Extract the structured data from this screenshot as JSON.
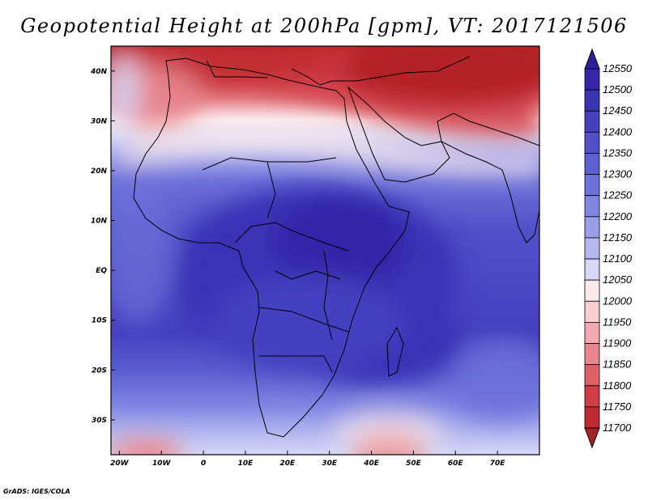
{
  "title": "Geopotential Height at 200hPa [gpm], VT: 2017121506",
  "credit": "GrADS: IGES/COLA",
  "map": {
    "lon_range": [
      -22,
      80
    ],
    "lat_range": [
      -37,
      45
    ],
    "lon_labels": [
      "20W",
      "10W",
      "0",
      "10E",
      "20E",
      "30E",
      "40E",
      "50E",
      "60E",
      "70E"
    ],
    "lon_values": [
      -20,
      -10,
      0,
      10,
      20,
      30,
      40,
      50,
      60,
      70
    ],
    "lat_labels": [
      "40N",
      "30N",
      "20N",
      "10N",
      "EQ",
      "10S",
      "20S",
      "30S"
    ],
    "lat_values": [
      40,
      30,
      20,
      10,
      0,
      -10,
      -20,
      -30
    ]
  },
  "colorbar": {
    "levels": [
      "12550",
      "12500",
      "12450",
      "12400",
      "12350",
      "12300",
      "12250",
      "12200",
      "12150",
      "12100",
      "12050",
      "12000",
      "11950",
      "11900",
      "11850",
      "11800",
      "11750",
      "11700"
    ],
    "colors": [
      "#2a1f9c",
      "#3326a8",
      "#3b33b5",
      "#4540bf",
      "#5150c8",
      "#5d60d0",
      "#6d72da",
      "#8085e2",
      "#9a9eea",
      "#b6b9f0",
      "#d6d8f6",
      "#fbeaec",
      "#f7cfd3",
      "#f0aab0",
      "#e8868e",
      "#de6168",
      "#d03d44",
      "#bd2a30",
      "#a81f25"
    ]
  },
  "chart_data": {
    "type": "heatmap",
    "title": "Geopotential Height at 200hPa [gpm], VT: 2017121506",
    "variable": "Geopotential Height",
    "level": "200hPa",
    "units": "gpm",
    "valid_time": "2017121506",
    "x_ticks": [
      "20W",
      "10W",
      "0",
      "10E",
      "20E",
      "30E",
      "40E",
      "50E",
      "60E",
      "70E"
    ],
    "y_ticks": [
      "40N",
      "30N",
      "20N",
      "10N",
      "EQ",
      "10S",
      "20S",
      "30S"
    ],
    "contour_levels": [
      11700,
      11750,
      11800,
      11850,
      11900,
      11950,
      12000,
      12050,
      12100,
      12150,
      12200,
      12250,
      12300,
      12350,
      12400,
      12450,
      12500,
      12550
    ]
  }
}
